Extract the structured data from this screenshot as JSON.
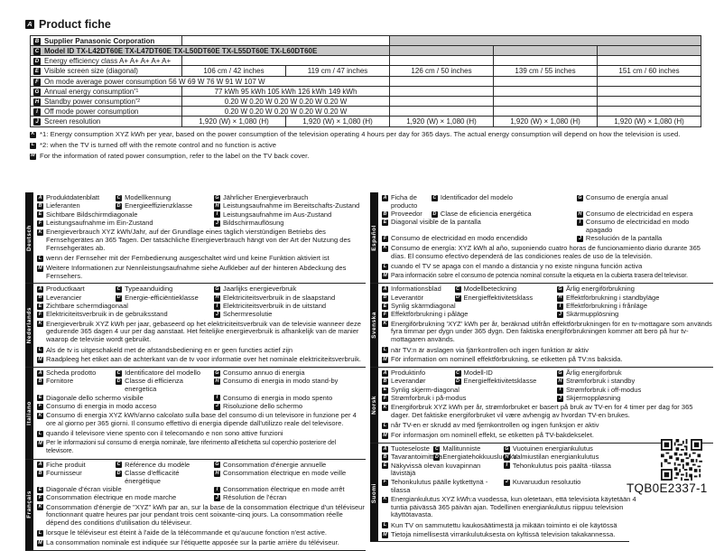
{
  "letters": {
    "A": "A",
    "B": "B",
    "C": "C",
    "D": "D",
    "E": "E",
    "F": "F",
    "G": "G",
    "H": "H",
    "I": "I",
    "J": "J",
    "K": "K",
    "L": "L",
    "M": "M"
  },
  "header": {
    "title": "Product fiche"
  },
  "table": {
    "supplier": "Supplier Panasonic Corporation",
    "model": "Model ID TX-L42DT60E TX-L47DT60E TX-L50DT60E TX-L55DT60E TX-L60DT60E",
    "efficiency": "Energy efficiency class A+ A+ A+ A+ A+",
    "screen_size_label": "Visible screen size (diagonal)",
    "screen_sizes": [
      "106 cm / 42 inches",
      "119 cm / 47 inches",
      "126 cm / 50 inches",
      "139 cm / 55 inches",
      "151 cm / 60 inches"
    ],
    "on_mode": "On mode average power consumption 56 W 69 W 76 W 91 W 107 W",
    "annual_label": "Annual energy consumption",
    "annual_sup": "*1",
    "annual_values": "77 kWh 95 kWh 105 kWh 126 kWh 149 kWh",
    "standby_label": "Standby power consumption ",
    "standby_sup": "*2",
    "standby_values": "0.20 W 0.20 W 0.20 W 0.20 W 0.20 W",
    "off_label": "Off mode power consumption",
    "off_values": "0.20 W 0.20 W 0.20 W 0.20 W 0.20 W",
    "resolution_label": "Screen resolution",
    "resolutions": [
      "1,920 (W) × 1,080 (H)",
      "1,920 (W) × 1,080 (H)",
      "1,920 (W) × 1,080 (H)",
      "1,920 (W) × 1,080 (H)",
      "1,920 (W) × 1,080 (H)"
    ]
  },
  "footnotes": {
    "k": "*1: Energy consumption XYZ kWh per year, based on the power consumption of the television operating 4 hours per day for 365 days. The actual energy consumption will depend on how the television is used.",
    "l": "*2: when the TV is turned off with the remote control and no function is active",
    "m": "For the information of rated power consumption, refer to the label on the TV back cover."
  },
  "languages": [
    {
      "name": "Deutsch",
      "A": "Produktdatenblatt",
      "B": "Lieferanten",
      "C": "Modellkennung",
      "D": "Energieeffizienzklasse",
      "E": "Sichtbare Bildschirmdiagonale",
      "F": "Leistungsaufnahme im Ein-Zustand",
      "G": "Jährlicher Energieverbrauch",
      "H": "Leistungsaufnahme im Bereitschafts-Zustand",
      "I": "Leistungsaufnahme im Aus-Zustand",
      "J": "Bildschirmauflösung",
      "K": "Energieverbrauch XYZ kWh/Jahr, auf der Grundlage eines täglich vierstündigen Betriebs des Fernsehgerätes an 365 Tagen. Der tatsächliche Energieverbrauch hängt von der Art der Nutzung des Fernsehgerätes ab.",
      "L": "wenn der Fernseher mit der Fernbedienung ausgeschaltet wird und keine Funktion aktiviert ist",
      "M": "Weitere Informationen zur Nennleistungsaufnahme siehe Aufkleber auf der hinteren Abdeckung des Fernsehers."
    },
    {
      "name": "Nederlands",
      "A": "Productkaart",
      "B": "Leverancier",
      "C": "Typeaanduiding",
      "D": "Energie-efficiëntieklasse",
      "E": "Zichtbare schermdiagonaal",
      "F": "Elektriciteitsverbruik in de gebruiksstand",
      "G": "Jaarlijks energieverbruik",
      "H": "Elektriciteitsverbruik in de slaapstand",
      "I": "Elektriciteitsverbruik in de uitstand",
      "J": "Schermresolutie",
      "K": "Energieverbruik XYZ kWh per jaar, gebaseerd op het elektriciteitsverbruik van de televisie wanneer deze gedurende 365 dagen 4 uur per dag aanstaat. Het feitelijke energieverbruik is afhankelijk van de manier waarop de televisie wordt gebruikt.",
      "L": "Als de tv is uitgeschakeld met de afstandsbediening en er geen functies actief zijn",
      "M": "Raadpleeg het etiket aan de achterkant van de tv voor informatie over het nominale elektriciteitsverbruik."
    },
    {
      "name": "Italiano",
      "A": "Scheda prodotto",
      "B": "Fornitore",
      "C": "Identificatore del modello",
      "D": "Classe di efficienza energetica",
      "E": "Diagonale dello schermo visibile",
      "F": "Consumo di energia in modo acceso",
      "G": "Consumo annuo di energia",
      "H": "Consumo di energia in modo stand-by",
      "I": "Consumo di energia in modo spento",
      "J": "Risoluzione dello schermo",
      "K": "Consumo di energia XYZ kWh/anno calcolato sulla base del consumo di un televisore in funzione per 4 ore al giorno per 365 giorni. Il consumo effettivo di energia dipende dall'utilizzo reale del televisore.",
      "L": "quando il televisore viene spento con il telecomando e non sono attive funzioni",
      "M": "Per le informazioni sul consumo di energia nominale, fare riferimento all'etichetta sul coperchio posteriore del televisore."
    },
    {
      "name": "Français",
      "A": "Fiche produit",
      "B": "Fournisseur",
      "C": "Référence du modèle",
      "D": "Classe d'efficacité énergétique",
      "E": "Diagonale d'écran visible",
      "F": "Consommation électrique en mode marche",
      "G": "Consommation d'énergie annuelle",
      "H": "Consommation électrique en mode veille",
      "I": "Consommation électrique en mode arrêt",
      "J": "Résolution de l'écran",
      "K": "Consommation d'énergie de \"XYZ\" kWh par an, sur la base de la consommation électrique d'un téléviseur fonctionnant quatre heures par jour pendant trois cent soixante-cinq jours. La consommation réelle dépend des conditions d'utilisation du téléviseur.",
      "L": "lorsque le téléviseur est éteint à l'aide de la télécommande et qu'aucune fonction n'est active.",
      "M": "La consommation nominale est indiquée sur l'étiquette apposée sur la partie arrière du téléviseur."
    },
    {
      "name": "Español",
      "A": "Ficha de producto",
      "B": "Proveedor",
      "C": "Identificador del modelo",
      "D": "Clase de eficiencia energética",
      "E": "Diagonal visible de la pantalla",
      "F": "Consumo de electricidad en modo encendido",
      "G": "Consumo de energía anual",
      "H": "Consumo de electricidad en espera",
      "I": "Consumo de electricidad en modo apagado",
      "J": "Resolución de la pantalla",
      "K": "Consumo de energía: XYZ kWh al año, suponiendo cuatro horas de funcionamiento diario durante 365 días. El consumo efectivo dependerá de las condiciones reales de uso de la televisión.",
      "L": "cuando el TV se apaga con el mando a distancia y no existe ninguna función activa",
      "M": "Para información sobre el consumo de potencia nominal consulte la etiqueta en la cubierta trasera del televisor."
    },
    {
      "name": "Svenska",
      "A": "Informationsblad",
      "B": "Leverantör",
      "C": "Modellbeteckning",
      "D": "Energieffektivitetsklass",
      "E": "Synlig skärmdiagonal",
      "F": "Effektförbrukning i påläge",
      "G": "Årlig energiförbrukning",
      "H": "Effektförbrukning i standbyläge",
      "I": "Effektförbrukning i frånläge",
      "J": "Skärmupplösning",
      "K": "Energiförbrukning 'XYZ' kWh per år, beräknad utifrån effektförbrukningen för en tv-mottagare som används fyra timmar per dygn under 365 dygn. Den faktiska energiförbrukningen kommer att bero på hur tv-mottagaren används.",
      "L": "när TV:n är avslagen via fjärrkontrollen och ingen funktion är aktiv",
      "M": "För information om nominell effektförbrukning, se etiketten på TV:ns baksida."
    },
    {
      "name": "Norsk",
      "A": "Produktinfo",
      "B": "Leverandør",
      "C": "Modell-ID",
      "D": "Energieffektivitetsklasse",
      "E": "Synlig skjerm-diagonal",
      "F": "Strømforbruk i på-modus",
      "G": "Årlig energiforbruk",
      "H": "Strømforbruk i standby",
      "I": "Strømforbruk i off-modus",
      "J": "Skjermoppløsning",
      "K": "Energiforbruk XYZ kWh per år, strømforbruket er basert på bruk av TV-en for 4 timer per dag for 365 dager. Det faktiske energiforbruket vil være avhengig av hvordan TV-en brukes.",
      "L": "når TV-en er skrudd av med fjernkontrollen og ingen funksjon er aktiv",
      "M": "For informasjon om nominell effekt, se etiketten på TV-bakdekselet."
    },
    {
      "name": "Suomi",
      "A": "Tuoteseloste",
      "B": "Tavarantoimittaja",
      "C": "Mallitunniste",
      "D": "Energiatehokkuusluokka",
      "E": "Näkyvissä olevan kuvapinnan lävistäjä",
      "F": "Tehonkulutus päälle kytkettynä -tilassa",
      "G": "Vuotuinen energiankulutus",
      "H": "Valmiustilan energiankulutus",
      "I": "Tehonkulutus pois päältä -tilassa",
      "J": "Kuvaruudun resoluutio",
      "K": "Energiankulutus XYZ kWh:a vuodessa, kun oletetaan, että televisiota käytetään 4 tuntia päivässä 365 päivän ajan. Todellinen energiankulutus riippuu television käyttötavasta.",
      "L": "Kun TV on sammutettu kaukosäätimestä ja mikään toiminto ei ole käytössä",
      "M": "Tietoja nimellisestä virrankulutuksesta on kyltissä television takakannessa."
    }
  ],
  "doc_code": "TQB0E2337-1",
  "colors": {
    "row_shade": "#c9c9c9",
    "icon_bg": "#161616"
  }
}
